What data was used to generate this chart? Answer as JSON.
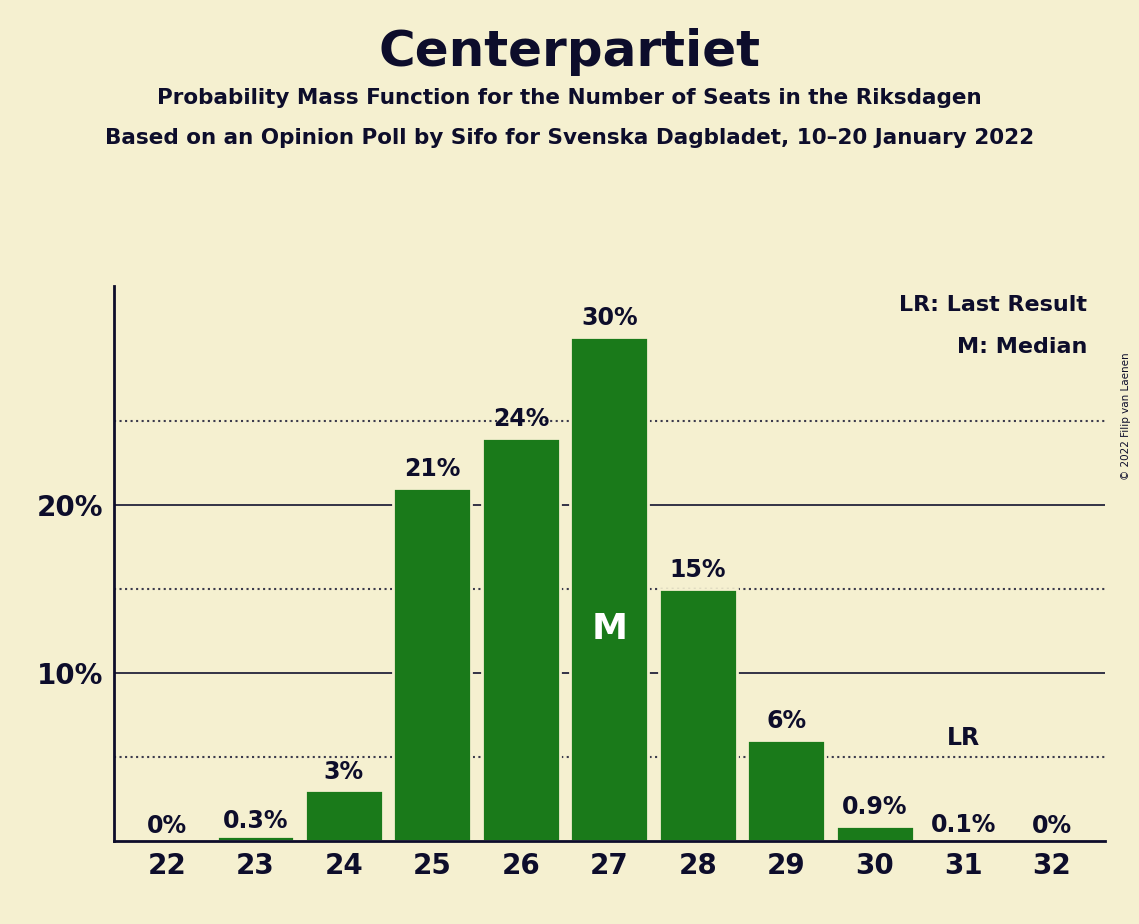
{
  "title": "Centerpartiet",
  "subtitle1": "Probability Mass Function for the Number of Seats in the Riksdagen",
  "subtitle2": "Based on an Opinion Poll by Sifo for Svenska Dagbladet, 10–20 January 2022",
  "copyright": "© 2022 Filip van Laenen",
  "seats": [
    22,
    23,
    24,
    25,
    26,
    27,
    28,
    29,
    30,
    31,
    32
  ],
  "probabilities": [
    0.0,
    0.3,
    3.0,
    21.0,
    24.0,
    30.0,
    15.0,
    6.0,
    0.9,
    0.1,
    0.0
  ],
  "bar_color": "#1a7a1a",
  "bar_edge_color": "#f5f0d0",
  "background_color": "#f5f0d0",
  "text_color": "#0d0d2b",
  "median_seat": 27,
  "lr_seat": 31,
  "bar_labels": [
    "0%",
    "0.3%",
    "3%",
    "21%",
    "24%",
    "30%",
    "15%",
    "6%",
    "0.9%",
    "0.1%",
    "0%"
  ],
  "yticks": [
    10,
    20
  ],
  "ytick_labels": [
    "10%",
    "20%"
  ],
  "dotted_lines": [
    5,
    15,
    25
  ],
  "solid_lines": [
    10,
    20
  ],
  "legend_lr": "LR: Last Result",
  "legend_m": "M: Median",
  "ylim": [
    0,
    33
  ]
}
